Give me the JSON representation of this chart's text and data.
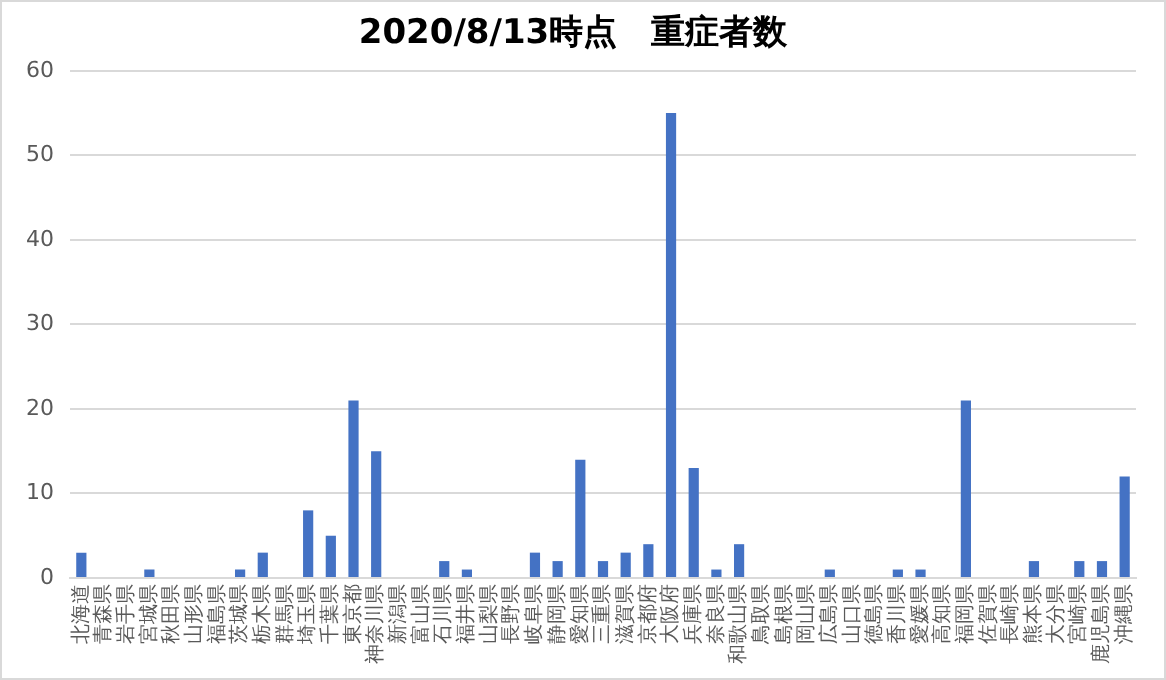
{
  "chart_data": {
    "type": "bar",
    "title": "2020/8/13時点　重症者数",
    "categories": [
      "北海道",
      "青森県",
      "岩手県",
      "宮城県",
      "秋田県",
      "山形県",
      "福島県",
      "茨城県",
      "栃木県",
      "群馬県",
      "埼玉県",
      "千葉県",
      "東京都",
      "神奈川県",
      "新潟県",
      "富山県",
      "石川県",
      "福井県",
      "山梨県",
      "長野県",
      "岐阜県",
      "静岡県",
      "愛知県",
      "三重県",
      "滋賀県",
      "京都府",
      "大阪府",
      "兵庫県",
      "奈良県",
      "和歌山県",
      "鳥取県",
      "島根県",
      "岡山県",
      "広島県",
      "山口県",
      "徳島県",
      "香川県",
      "愛媛県",
      "高知県",
      "福岡県",
      "佐賀県",
      "長崎県",
      "熊本県",
      "大分県",
      "宮崎県",
      "鹿児島県",
      "沖縄県"
    ],
    "values": [
      3,
      0,
      0,
      1,
      0,
      0,
      0,
      1,
      3,
      0,
      8,
      5,
      21,
      15,
      0,
      0,
      2,
      1,
      0,
      0,
      3,
      2,
      14,
      2,
      3,
      4,
      55,
      13,
      1,
      4,
      0,
      0,
      0,
      1,
      0,
      0,
      1,
      1,
      0,
      21,
      0,
      0,
      2,
      0,
      2,
      2,
      12
    ],
    "color": "#4472c4",
    "ylim": [
      0,
      60
    ],
    "yticks": [
      0,
      10,
      20,
      30,
      40,
      50,
      60
    ],
    "grid": "y",
    "legend": false
  }
}
